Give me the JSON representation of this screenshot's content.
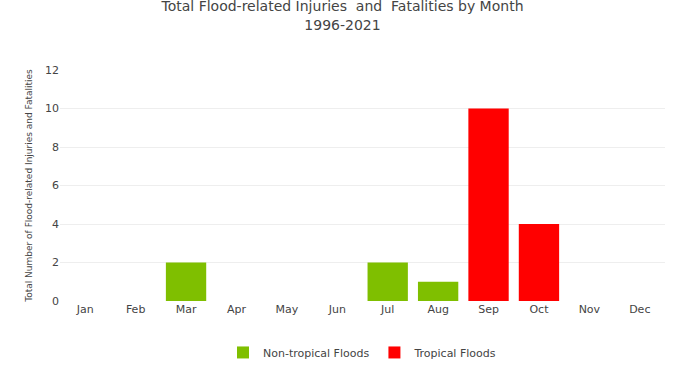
{
  "chart_data": {
    "type": "bar",
    "title": "Total Flood-related Injuries  and  Fatalities by Month",
    "subtitle": "1996-2021",
    "categories": [
      "Jan",
      "Feb",
      "Mar",
      "Apr",
      "May",
      "Jun",
      "Jul",
      "Aug",
      "Sep",
      "Oct",
      "Nov",
      "Dec"
    ],
    "series": [
      {
        "name": "Non-tropical Floods",
        "color": "#7FBF00",
        "values": [
          0,
          0,
          2,
          0,
          0,
          0,
          2,
          1,
          0,
          0,
          0,
          0
        ]
      },
      {
        "name": "Tropical Floods",
        "color": "#FF0000",
        "values": [
          0,
          0,
          0,
          0,
          0,
          0,
          0,
          0,
          10,
          4,
          0,
          0
        ]
      }
    ],
    "y_label": "Total Number of Flood-related Injuries and Fatalities",
    "ylim": [
      0,
      12
    ],
    "yticks": [
      0,
      2,
      4,
      6,
      8,
      10,
      12
    ],
    "grid": true,
    "legend": "bottom"
  }
}
